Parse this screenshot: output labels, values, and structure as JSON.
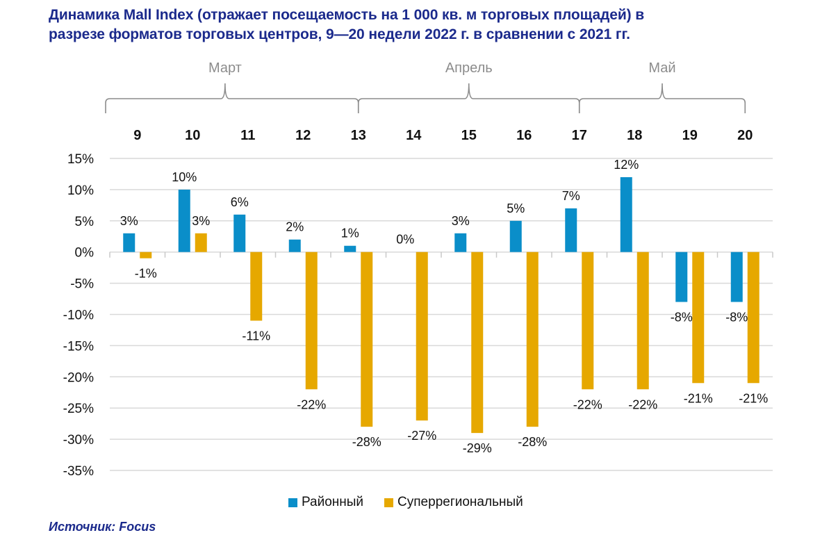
{
  "chart_data": {
    "type": "bar",
    "title": "Динамика Mall Index (отражает посещаемость на 1 000 кв. м торговых площадей) в разрезе форматов торговых центров, 9—20 недели 2022 г. в сравнении с 2021 гг.",
    "title_lines": [
      "Динамика Mall Index (отражает посещаемость на 1 000 кв. м торговых площадей) в",
      "разрезе форматов торговых центров, 9—20 недели 2022 г. в сравнении с 2021 гг."
    ],
    "xlabel": "",
    "ylabel": "",
    "categories": [
      "9",
      "10",
      "11",
      "12",
      "13",
      "14",
      "15",
      "16",
      "17",
      "18",
      "19",
      "20"
    ],
    "month_groups": [
      {
        "label": "Март",
        "from": "9",
        "to": "13"
      },
      {
        "label": "Апрель",
        "from": "13",
        "to": "17"
      },
      {
        "label": "Май",
        "from": "17",
        "to": "20"
      }
    ],
    "series": [
      {
        "name": "Районный",
        "color": "#0a8ec9",
        "values": [
          3,
          10,
          6,
          2,
          1,
          0,
          3,
          5,
          7,
          12,
          -8,
          -8
        ],
        "labels": [
          "3%",
          "10%",
          "6%",
          "2%",
          "1%",
          "0%",
          "3%",
          "5%",
          "7%",
          "12%",
          "-8%",
          "-8%"
        ]
      },
      {
        "name": "Суперрегиональный",
        "color": "#e6a800",
        "values": [
          -1,
          3,
          -11,
          -22,
          -28,
          -27,
          -29,
          -28,
          -22,
          -22,
          -21,
          -21
        ],
        "labels": [
          "-1%",
          "3%",
          "-11%",
          "-22%",
          "-28%",
          "-27%",
          "-29%",
          "-28%",
          "-22%",
          "-22%",
          "-21%",
          "-21%"
        ]
      }
    ],
    "ylim": [
      -35,
      15
    ],
    "yticks": [
      15,
      10,
      5,
      0,
      -5,
      -10,
      -15,
      -20,
      -25,
      -30,
      -35
    ],
    "ytick_labels": [
      "15%",
      "10%",
      "5%",
      "0%",
      "-5%",
      "-10%",
      "-15%",
      "-20%",
      "-25%",
      "-30%",
      "-35%"
    ],
    "grid": true,
    "legend_position": "bottom"
  },
  "source": "Источник: Focus",
  "colors": {
    "title": "#1b2a8c",
    "grid": "#d9d9d9",
    "bracket": "#8c8c8c"
  }
}
